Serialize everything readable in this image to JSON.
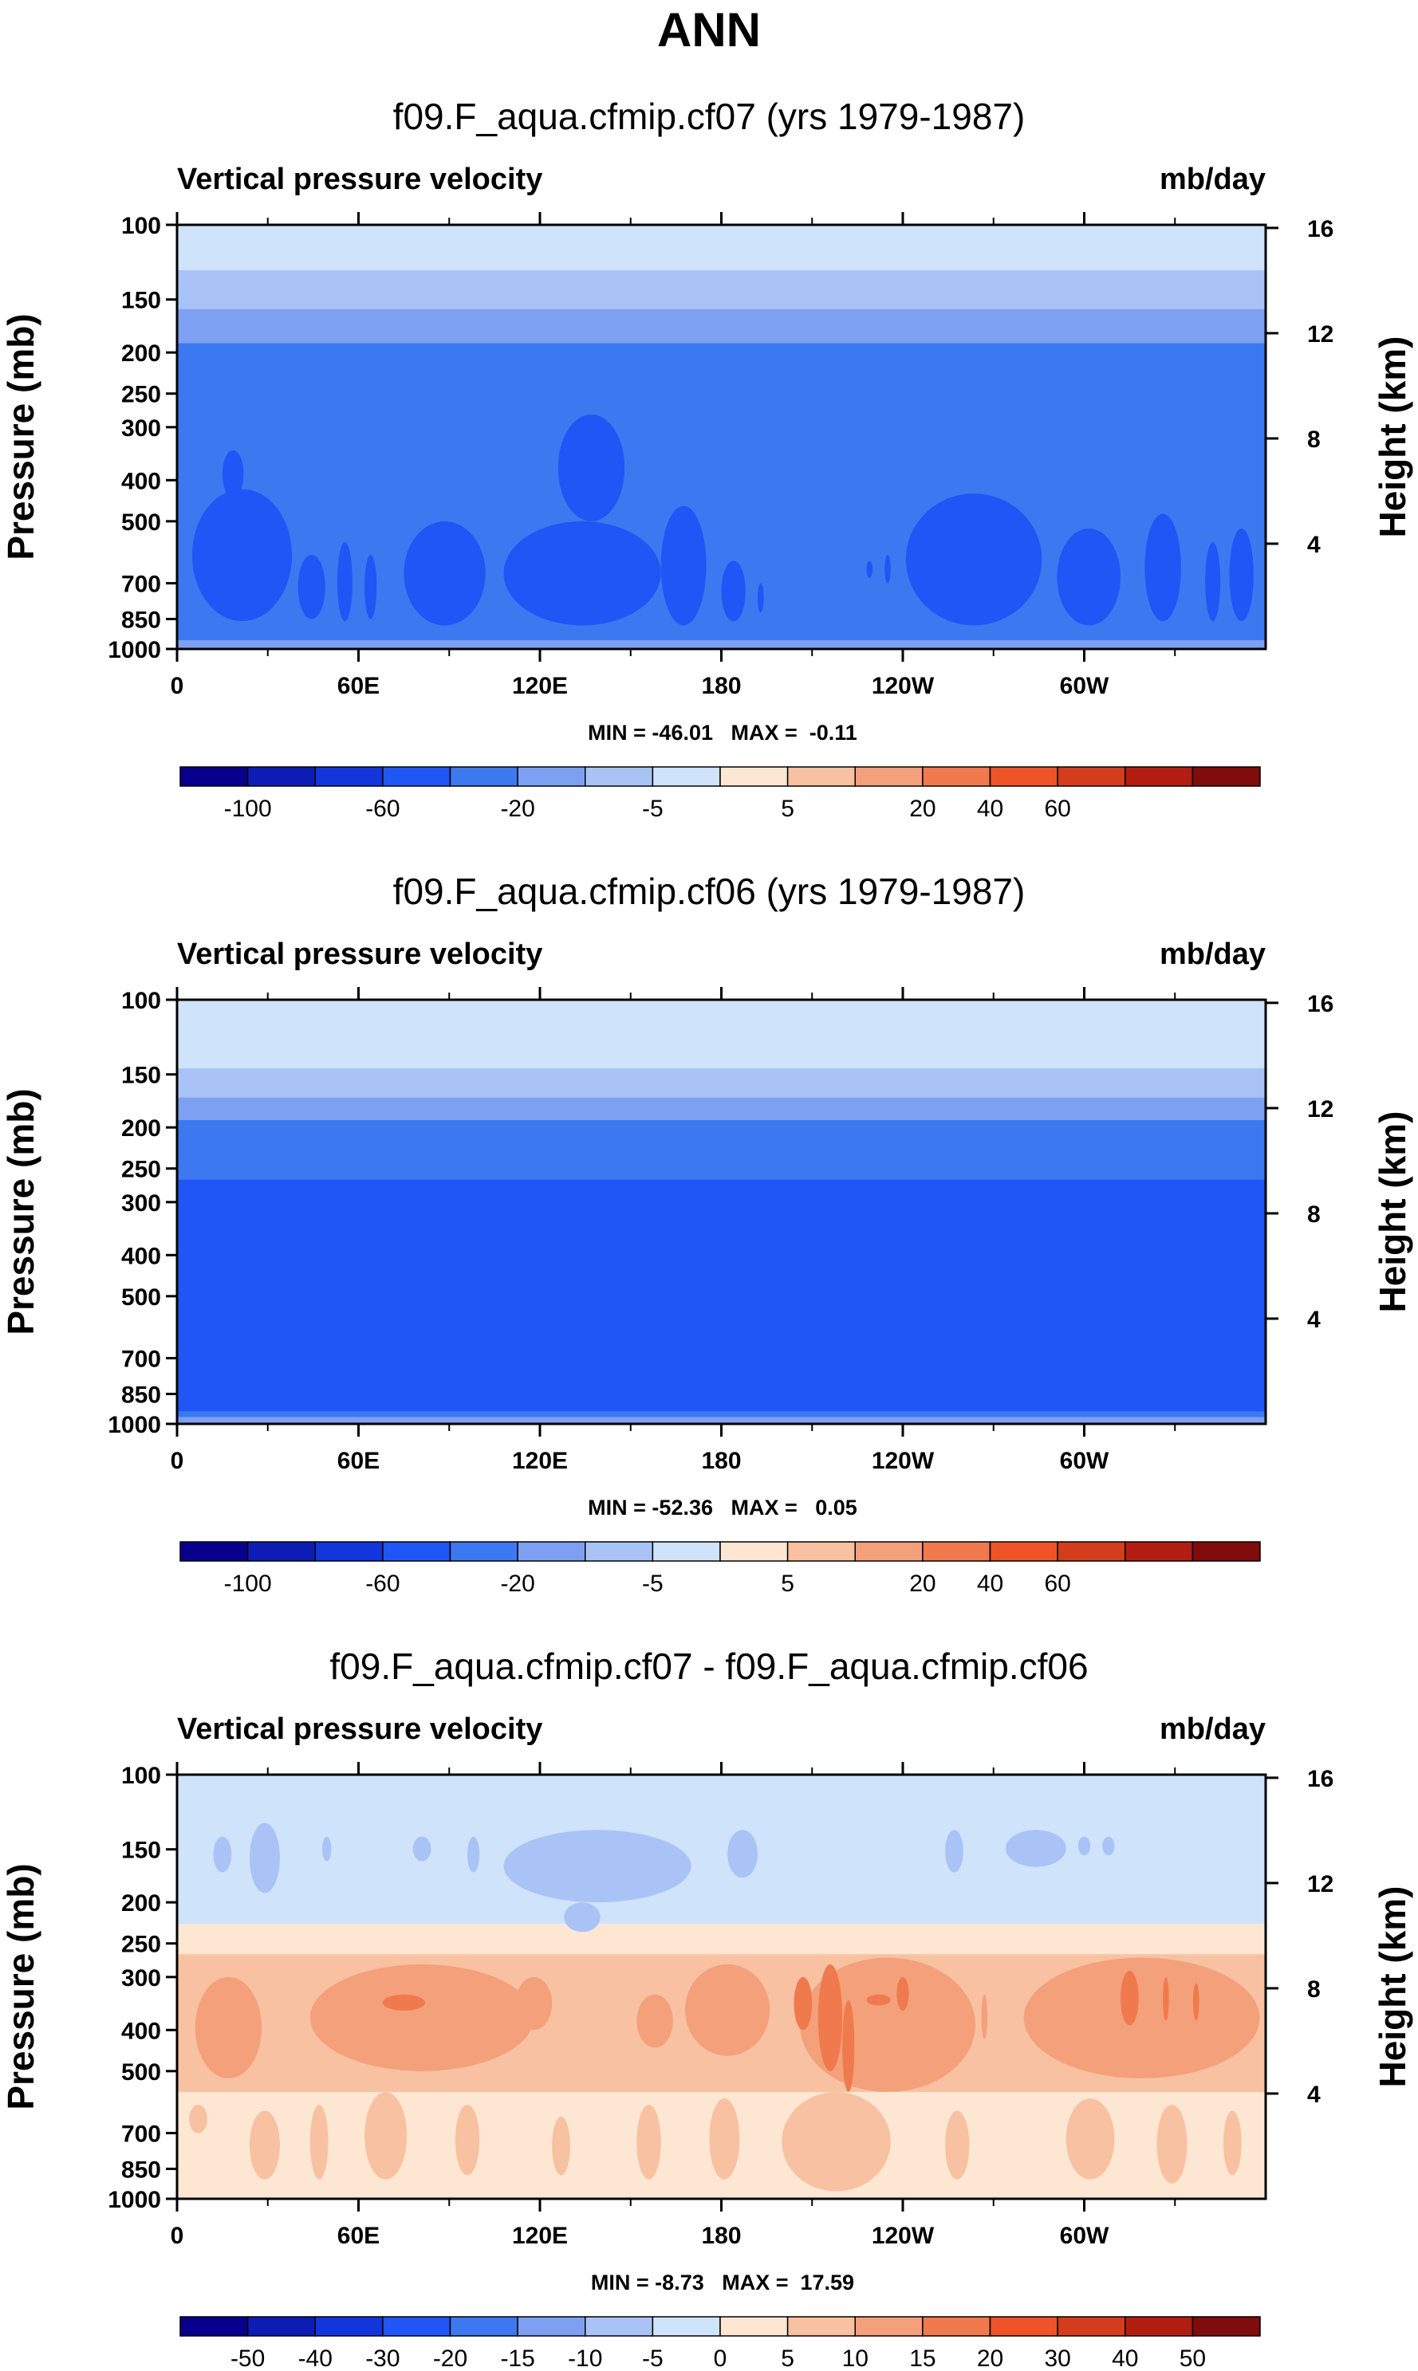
{
  "figure": {
    "title": "ANN"
  },
  "colors": {
    "levels_bg": "#ffffff",
    "frame": "#000000"
  },
  "chart_data": [
    {
      "type": "heatmap",
      "title": "f09.F_aqua.cfmip.cf07 (yrs 1979-1987)",
      "left_string": "Vertical pressure velocity",
      "right_string": "mb/day",
      "xlabel": "",
      "ylabel": "Pressure (mb)",
      "right_ylabel": "Height (km)",
      "x_ticks": [
        "0",
        "60E",
        "120E",
        "180",
        "120W",
        "60W"
      ],
      "x_tick_values": [
        0,
        60,
        120,
        180,
        240,
        300
      ],
      "xlim": [
        0,
        360
      ],
      "y_ticks": [
        "100",
        "150",
        "200",
        "250",
        "300",
        "400",
        "500",
        "700",
        "850",
        "1000"
      ],
      "y_tick_values": [
        100,
        150,
        200,
        250,
        300,
        400,
        500,
        700,
        850,
        1000
      ],
      "ylim": [
        1000,
        100
      ],
      "y_scale": "log",
      "right_y_ticks": [
        "16",
        "12",
        "8",
        "4"
      ],
      "right_y_tick_values": [
        16,
        12,
        8,
        4
      ],
      "min_max": "MIN = -46.01   MAX =  -0.11",
      "min": -46.01,
      "max": -0.11,
      "colorbar": {
        "levels": [
          -100,
          -80,
          -60,
          -40,
          -20,
          -10,
          -5,
          0,
          5,
          10,
          20,
          40,
          60
        ],
        "labels": [
          "-100",
          "-60",
          "-20",
          "-5",
          "5",
          "20",
          "40",
          "60"
        ],
        "label_values": [
          -100,
          -60,
          -20,
          -5,
          5,
          20,
          40,
          60
        ],
        "colors": [
          "#08008c",
          "#0c1cb4",
          "#1236dc",
          "#1f56f5",
          "#3c78f0",
          "#7da0f3",
          "#a9c3f6",
          "#cfe3fb",
          "#fde7d3",
          "#f8c1a2",
          "#f4a07a",
          "#f07a4d",
          "#ee5428",
          "#d43d1c",
          "#b31d11",
          "#800c0c"
        ]
      },
      "bands": [
        {
          "top_p": 100,
          "color": "#cfe3fb"
        },
        {
          "top_p": 128,
          "color": "#a9c3f6"
        },
        {
          "top_p": 158,
          "color": "#7da0f3"
        },
        {
          "top_p": 190,
          "color": "#3c78f0"
        },
        {
          "top_p": 955,
          "color": "#7da0f3"
        }
      ],
      "cells": [
        {
          "x": [
            5,
            38
          ],
          "p": [
            420,
            860
          ],
          "color": "#1f56f5"
        },
        {
          "x": [
            15,
            22
          ],
          "p": [
            340,
            440
          ],
          "color": "#1f56f5"
        },
        {
          "x": [
            40,
            49
          ],
          "p": [
            600,
            850
          ],
          "color": "#1f56f5"
        },
        {
          "x": [
            53,
            58
          ],
          "p": [
            560,
            860
          ],
          "color": "#1f56f5"
        },
        {
          "x": [
            62,
            66
          ],
          "p": [
            600,
            850
          ],
          "color": "#1f56f5"
        },
        {
          "x": [
            75,
            102
          ],
          "p": [
            500,
            880
          ],
          "color": "#1f56f5"
        },
        {
          "x": [
            108,
            160
          ],
          "p": [
            500,
            880
          ],
          "color": "#1f56f5"
        },
        {
          "x": [
            126,
            148
          ],
          "p": [
            280,
            500
          ],
          "color": "#1f56f5"
        },
        {
          "x": [
            160,
            175
          ],
          "p": [
            460,
            880
          ],
          "color": "#1f56f5"
        },
        {
          "x": [
            180,
            188
          ],
          "p": [
            620,
            860
          ],
          "color": "#1f56f5"
        },
        {
          "x": [
            192,
            194
          ],
          "p": [
            700,
            820
          ],
          "color": "#1f56f5"
        },
        {
          "x": [
            228,
            230
          ],
          "p": [
            620,
            680
          ],
          "color": "#1f56f5"
        },
        {
          "x": [
            234,
            236
          ],
          "p": [
            600,
            700
          ],
          "color": "#1f56f5"
        },
        {
          "x": [
            241,
            286
          ],
          "p": [
            430,
            880
          ],
          "color": "#1f56f5"
        },
        {
          "x": [
            291,
            312
          ],
          "p": [
            520,
            880
          ],
          "color": "#1f56f5"
        },
        {
          "x": [
            320,
            332
          ],
          "p": [
            480,
            860
          ],
          "color": "#1f56f5"
        },
        {
          "x": [
            340,
            345
          ],
          "p": [
            560,
            860
          ],
          "color": "#1f56f5"
        },
        {
          "x": [
            348,
            356
          ],
          "p": [
            520,
            860
          ],
          "color": "#1f56f5"
        }
      ]
    },
    {
      "type": "heatmap",
      "title": "f09.F_aqua.cfmip.cf06 (yrs 1979-1987)",
      "left_string": "Vertical pressure velocity",
      "right_string": "mb/day",
      "xlabel": "",
      "ylabel": "Pressure (mb)",
      "right_ylabel": "Height (km)",
      "x_ticks": [
        "0",
        "60E",
        "120E",
        "180",
        "120W",
        "60W"
      ],
      "x_tick_values": [
        0,
        60,
        120,
        180,
        240,
        300
      ],
      "xlim": [
        0,
        360
      ],
      "y_ticks": [
        "100",
        "150",
        "200",
        "250",
        "300",
        "400",
        "500",
        "700",
        "850",
        "1000"
      ],
      "y_tick_values": [
        100,
        150,
        200,
        250,
        300,
        400,
        500,
        700,
        850,
        1000
      ],
      "ylim": [
        1000,
        100
      ],
      "y_scale": "log",
      "right_y_ticks": [
        "16",
        "12",
        "8",
        "4"
      ],
      "right_y_tick_values": [
        16,
        12,
        8,
        4
      ],
      "min_max": "MIN = -52.36   MAX =   0.05",
      "min": -52.36,
      "max": 0.05,
      "colorbar": {
        "levels": [
          -100,
          -80,
          -60,
          -40,
          -20,
          -10,
          -5,
          0,
          5,
          10,
          20,
          40,
          60
        ],
        "labels": [
          "-100",
          "-60",
          "-20",
          "-5",
          "5",
          "20",
          "40",
          "60"
        ],
        "label_values": [
          -100,
          -60,
          -20,
          -5,
          5,
          20,
          40,
          60
        ],
        "colors": [
          "#08008c",
          "#0c1cb4",
          "#1236dc",
          "#1f56f5",
          "#3c78f0",
          "#7da0f3",
          "#a9c3f6",
          "#cfe3fb",
          "#fde7d3",
          "#f8c1a2",
          "#f4a07a",
          "#f07a4d",
          "#ee5428",
          "#d43d1c",
          "#b31d11",
          "#800c0c"
        ]
      },
      "bands": [
        {
          "top_p": 100,
          "color": "#cfe3fb"
        },
        {
          "top_p": 145,
          "color": "#a9c3f6"
        },
        {
          "top_p": 170,
          "color": "#7da0f3"
        },
        {
          "top_p": 192,
          "color": "#3c78f0"
        },
        {
          "top_p": 265,
          "color": "#1f56f5"
        },
        {
          "top_p": 935,
          "color": "#3c78f0"
        },
        {
          "top_p": 965,
          "color": "#7da0f3"
        }
      ],
      "cells": []
    },
    {
      "type": "heatmap",
      "title": "f09.F_aqua.cfmip.cf07 - f09.F_aqua.cfmip.cf06",
      "left_string": "Vertical pressure velocity",
      "right_string": "mb/day",
      "xlabel": "",
      "ylabel": "Pressure (mb)",
      "right_ylabel": "Height (km)",
      "x_ticks": [
        "0",
        "60E",
        "120E",
        "180",
        "120W",
        "60W"
      ],
      "x_tick_values": [
        0,
        60,
        120,
        180,
        240,
        300
      ],
      "xlim": [
        0,
        360
      ],
      "y_ticks": [
        "100",
        "150",
        "200",
        "250",
        "300",
        "400",
        "500",
        "700",
        "850",
        "1000"
      ],
      "y_tick_values": [
        100,
        150,
        200,
        250,
        300,
        400,
        500,
        700,
        850,
        1000
      ],
      "ylim": [
        1000,
        100
      ],
      "y_scale": "log",
      "right_y_ticks": [
        "16",
        "12",
        "8",
        "4"
      ],
      "right_y_tick_values": [
        16,
        12,
        8,
        4
      ],
      "min_max": "MIN = -8.73   MAX =  17.59",
      "min": -8.73,
      "max": 17.59,
      "colorbar": {
        "levels": [
          -50,
          -40,
          -30,
          -20,
          -15,
          -10,
          -5,
          0,
          5,
          10,
          15,
          20,
          30,
          40,
          50
        ],
        "labels": [
          "-50",
          "-40",
          "-30",
          "-20",
          "-15",
          "-10",
          "-5",
          "0",
          "5",
          "10",
          "15",
          "20",
          "30",
          "40",
          "50"
        ],
        "label_values": [
          -50,
          -40,
          -30,
          -20,
          -15,
          -10,
          -5,
          0,
          5,
          10,
          15,
          20,
          30,
          40,
          50
        ],
        "colors": [
          "#08008c",
          "#0c1cb4",
          "#1236dc",
          "#1f56f5",
          "#3c78f0",
          "#7da0f3",
          "#a9c3f6",
          "#cfe3fb",
          "#fde7d3",
          "#f8c1a2",
          "#f4a07a",
          "#f07a4d",
          "#ee5428",
          "#d43d1c",
          "#b31d11",
          "#800c0c"
        ]
      },
      "bands": [
        {
          "top_p": 100,
          "color": "#cfe3fb"
        },
        {
          "top_p": 225,
          "color": "#fde7d3"
        },
        {
          "top_p": 265,
          "color": "#f8c1a2"
        },
        {
          "top_p": 560,
          "color": "#fde7d3"
        }
      ],
      "cells": [
        {
          "x": [
            12,
            18
          ],
          "p": [
            140,
            170
          ],
          "color": "#a9c3f6"
        },
        {
          "x": [
            24,
            34
          ],
          "p": [
            130,
            190
          ],
          "color": "#a9c3f6"
        },
        {
          "x": [
            48,
            51
          ],
          "p": [
            140,
            160
          ],
          "color": "#a9c3f6"
        },
        {
          "x": [
            78,
            84
          ],
          "p": [
            140,
            160
          ],
          "color": "#a9c3f6"
        },
        {
          "x": [
            96,
            100
          ],
          "p": [
            140,
            170
          ],
          "color": "#a9c3f6"
        },
        {
          "x": [
            108,
            170
          ],
          "p": [
            135,
            200
          ],
          "color": "#a9c3f6"
        },
        {
          "x": [
            128,
            140
          ],
          "p": [
            200,
            235
          ],
          "color": "#a9c3f6"
        },
        {
          "x": [
            182,
            192
          ],
          "p": [
            135,
            175
          ],
          "color": "#a9c3f6"
        },
        {
          "x": [
            254,
            260
          ],
          "p": [
            135,
            170
          ],
          "color": "#a9c3f6"
        },
        {
          "x": [
            274,
            294
          ],
          "p": [
            135,
            165
          ],
          "color": "#a9c3f6"
        },
        {
          "x": [
            298,
            302
          ],
          "p": [
            140,
            155
          ],
          "color": "#a9c3f6"
        },
        {
          "x": [
            306,
            310
          ],
          "p": [
            140,
            155
          ],
          "color": "#a9c3f6"
        },
        {
          "x": [
            6,
            28
          ],
          "p": [
            300,
            520
          ],
          "color": "#f4a07a"
        },
        {
          "x": [
            44,
            118
          ],
          "p": [
            280,
            500
          ],
          "color": "#f4a07a"
        },
        {
          "x": [
            68,
            82
          ],
          "p": [
            330,
            360
          ],
          "color": "#f07a4d"
        },
        {
          "x": [
            112,
            124
          ],
          "p": [
            300,
            400
          ],
          "color": "#f4a07a"
        },
        {
          "x": [
            152,
            164
          ],
          "p": [
            330,
            440
          ],
          "color": "#f4a07a"
        },
        {
          "x": [
            168,
            196
          ],
          "p": [
            280,
            460
          ],
          "color": "#f4a07a"
        },
        {
          "x": [
            206,
            264
          ],
          "p": [
            270,
            560
          ],
          "color": "#f4a07a"
        },
        {
          "x": [
            204,
            210
          ],
          "p": [
            300,
            400
          ],
          "color": "#f07a4d"
        },
        {
          "x": [
            212,
            220
          ],
          "p": [
            280,
            500
          ],
          "color": "#f07a4d"
        },
        {
          "x": [
            220,
            224
          ],
          "p": [
            340,
            560
          ],
          "color": "#f07a4d"
        },
        {
          "x": [
            228,
            236
          ],
          "p": [
            330,
            350
          ],
          "color": "#f07a4d"
        },
        {
          "x": [
            238,
            242
          ],
          "p": [
            300,
            360
          ],
          "color": "#f07a4d"
        },
        {
          "x": [
            266,
            268
          ],
          "p": [
            330,
            420
          ],
          "color": "#f4a07a"
        },
        {
          "x": [
            280,
            358
          ],
          "p": [
            270,
            520
          ],
          "color": "#f4a07a"
        },
        {
          "x": [
            312,
            318
          ],
          "p": [
            290,
            390
          ],
          "color": "#f07a4d"
        },
        {
          "x": [
            326,
            328
          ],
          "p": [
            300,
            380
          ],
          "color": "#f07a4d"
        },
        {
          "x": [
            336,
            338
          ],
          "p": [
            310,
            380
          ],
          "color": "#f07a4d"
        },
        {
          "x": [
            4,
            10
          ],
          "p": [
            600,
            700
          ],
          "color": "#f8c1a2"
        },
        {
          "x": [
            24,
            34
          ],
          "p": [
            620,
            900
          ],
          "color": "#f8c1a2"
        },
        {
          "x": [
            44,
            50
          ],
          "p": [
            600,
            900
          ],
          "color": "#f8c1a2"
        },
        {
          "x": [
            62,
            76
          ],
          "p": [
            560,
            900
          ],
          "color": "#f8c1a2"
        },
        {
          "x": [
            92,
            100
          ],
          "p": [
            600,
            880
          ],
          "color": "#f8c1a2"
        },
        {
          "x": [
            124,
            130
          ],
          "p": [
            640,
            880
          ],
          "color": "#f8c1a2"
        },
        {
          "x": [
            152,
            160
          ],
          "p": [
            600,
            900
          ],
          "color": "#f8c1a2"
        },
        {
          "x": [
            176,
            186
          ],
          "p": [
            580,
            900
          ],
          "color": "#f8c1a2"
        },
        {
          "x": [
            200,
            236
          ],
          "p": [
            560,
            960
          ],
          "color": "#f8c1a2"
        },
        {
          "x": [
            254,
            262
          ],
          "p": [
            620,
            900
          ],
          "color": "#f8c1a2"
        },
        {
          "x": [
            294,
            310
          ],
          "p": [
            580,
            900
          ],
          "color": "#f8c1a2"
        },
        {
          "x": [
            324,
            334
          ],
          "p": [
            600,
            920
          ],
          "color": "#f8c1a2"
        },
        {
          "x": [
            346,
            352
          ],
          "p": [
            620,
            880
          ],
          "color": "#f8c1a2"
        }
      ]
    }
  ]
}
